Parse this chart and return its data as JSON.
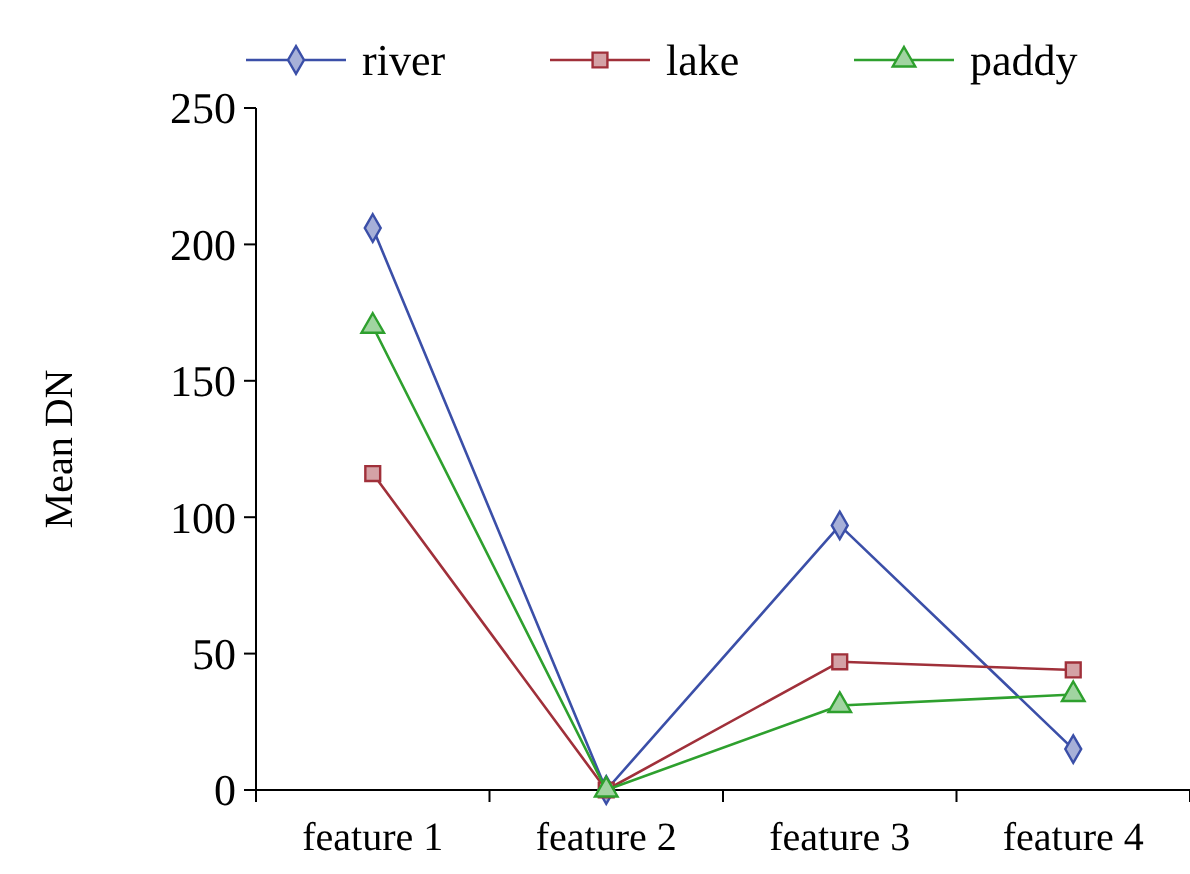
{
  "chart_data": {
    "type": "line",
    "ylabel": "Mean DN",
    "categories": [
      "feature 1",
      "feature 2",
      "feature 3",
      "feature 4"
    ],
    "ylim": [
      0,
      250
    ],
    "yticks": [
      0,
      50,
      100,
      150,
      200,
      250
    ],
    "grid": false,
    "legend": "top",
    "series": [
      {
        "name": "river",
        "color": "#3b4fa8",
        "marker": "diamond",
        "values": [
          206,
          0,
          97,
          15
        ]
      },
      {
        "name": "lake",
        "color": "#a0303a",
        "marker": "square",
        "values": [
          116,
          0,
          47,
          44
        ]
      },
      {
        "name": "paddy",
        "color": "#2ea02e",
        "marker": "triangle",
        "values": [
          170,
          0,
          31,
          35
        ]
      }
    ]
  }
}
